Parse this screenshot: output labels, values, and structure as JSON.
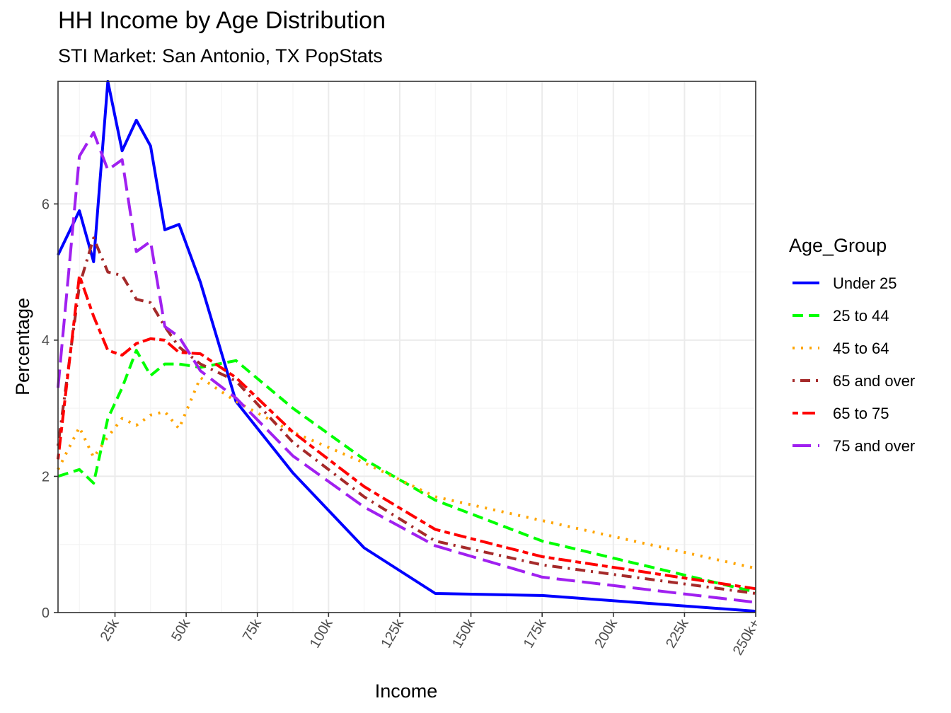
{
  "chart_data": {
    "type": "line",
    "title": "HH Income by Age Distribution",
    "subtitle": "STI Market: San Antonio, TX PopStats",
    "xlabel": "Income",
    "ylabel": "Percentage",
    "xlim": [
      5,
      250
    ],
    "ylim": [
      0,
      7.8
    ],
    "x_ticks": [
      25,
      50,
      75,
      100,
      125,
      150,
      175,
      200,
      225,
      250
    ],
    "x_tick_labels": [
      "25k",
      "50k",
      "75k",
      "100k",
      "125k",
      "150k",
      "175k",
      "200k",
      "225k",
      "250k+"
    ],
    "y_ticks": [
      0,
      2,
      4,
      6
    ],
    "y_tick_labels": [
      "0",
      "2",
      "4",
      "6"
    ],
    "grid": true,
    "legend": {
      "title": "Age_Group",
      "position": "right"
    },
    "x": [
      5,
      12.5,
      17.5,
      22.5,
      27.5,
      32.5,
      37.5,
      42.5,
      47.5,
      55,
      67.5,
      87.5,
      112.5,
      137.5,
      175,
      250
    ],
    "series": [
      {
        "name": "Under 25",
        "color": "#0000ff",
        "dash": "solid",
        "values": [
          5.25,
          5.9,
          5.15,
          7.8,
          6.78,
          7.23,
          6.85,
          5.62,
          5.7,
          4.85,
          3.1,
          2.05,
          0.95,
          0.28,
          0.25,
          0.02
        ]
      },
      {
        "name": "25 to 44",
        "color": "#00ff00",
        "dash": "dashed",
        "values": [
          2.0,
          2.1,
          1.9,
          2.85,
          3.3,
          3.85,
          3.48,
          3.65,
          3.65,
          3.6,
          3.7,
          3.0,
          2.25,
          1.65,
          1.05,
          0.3
        ]
      },
      {
        "name": "45 to 64",
        "color": "#ffa500",
        "dash": "dotted",
        "values": [
          2.1,
          2.72,
          2.28,
          2.58,
          2.85,
          2.75,
          2.9,
          2.95,
          2.7,
          3.45,
          3.1,
          2.65,
          2.2,
          1.7,
          1.35,
          0.65
        ]
      },
      {
        "name": "65 and over",
        "color": "#a52a2a",
        "dash": "dotdash",
        "values": [
          2.45,
          4.8,
          5.5,
          5.0,
          4.95,
          4.6,
          4.55,
          4.2,
          3.9,
          3.65,
          3.4,
          2.5,
          1.7,
          1.05,
          0.7,
          0.28
        ]
      },
      {
        "name": "65 to 75",
        "color": "#ff0000",
        "dash": "twodash",
        "values": [
          2.25,
          4.95,
          4.35,
          3.85,
          3.78,
          3.95,
          4.02,
          4.0,
          3.82,
          3.8,
          3.45,
          2.65,
          1.85,
          1.22,
          0.82,
          0.35
        ]
      },
      {
        "name": "75 and over",
        "color": "#a020f0",
        "dash": "longdash",
        "values": [
          3.3,
          6.7,
          7.05,
          6.5,
          6.65,
          5.3,
          5.45,
          4.2,
          4.05,
          3.55,
          3.15,
          2.3,
          1.55,
          0.98,
          0.52,
          0.15
        ]
      }
    ]
  }
}
